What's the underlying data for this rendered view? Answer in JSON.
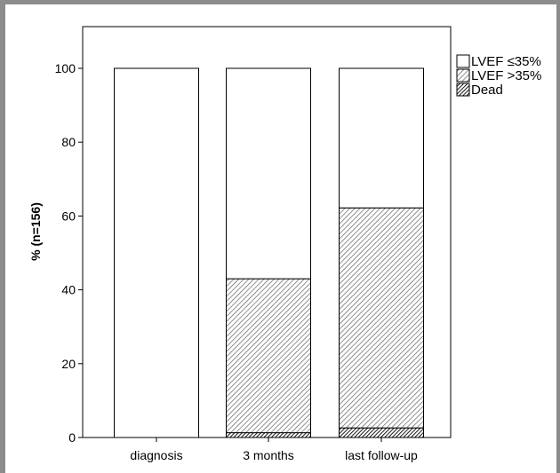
{
  "chart_data": {
    "type": "bar",
    "stacked": true,
    "categories": [
      "diagnosis",
      "3 months",
      "last follow-up"
    ],
    "series": [
      {
        "name": "Dead",
        "pattern": "dense-diagonal-hatch",
        "color": "#000000",
        "values": [
          0,
          1.3,
          2.6
        ]
      },
      {
        "name": "LVEF >35%",
        "pattern": "diagonal-hatch",
        "color": "#555555",
        "values": [
          0,
          41.7,
          59.6
        ]
      },
      {
        "name": "LVEF ≤35%",
        "pattern": "none",
        "color": "#ffffff",
        "values": [
          100,
          57.0,
          37.8
        ]
      }
    ],
    "legend_order": [
      "LVEF ≤35%",
      "LVEF >35%",
      "Dead"
    ],
    "ylabel": "% (n=156)",
    "xlabel": "",
    "ylim": [
      0,
      110
    ],
    "yticks": [
      0,
      20,
      40,
      60,
      80,
      100
    ],
    "grid": false,
    "legend_position": "top-right, outside plot"
  }
}
